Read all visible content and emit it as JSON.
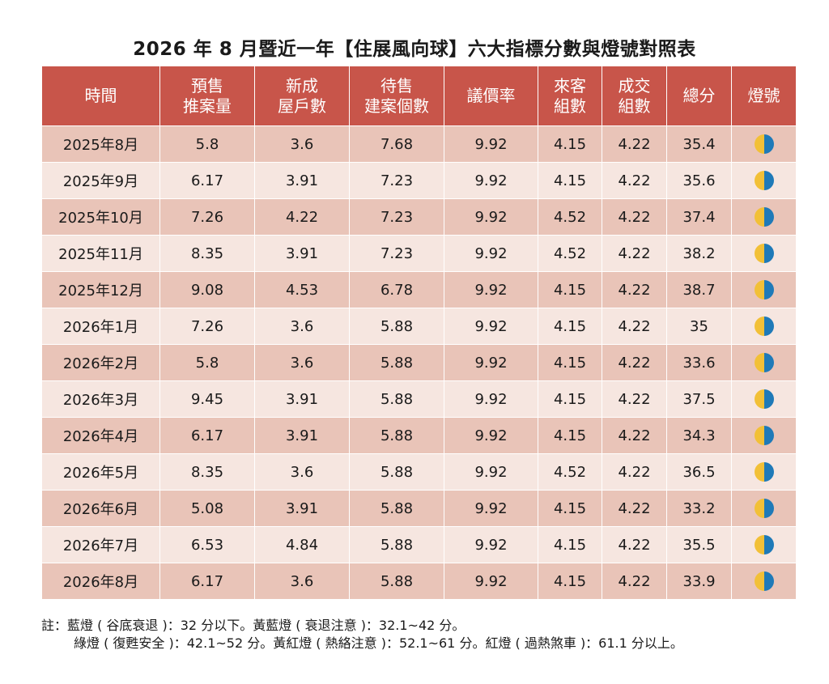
{
  "title": "2026 年 8 月暨近一年【住展風向球】六大指標分數與燈號對照表",
  "colors": {
    "header_bg": "#c8554a",
    "row_dark": "#e9c4b8",
    "row_light": "#f6e6e0",
    "lamp_yellow": "#f2c037",
    "lamp_blue": "#1f7ab8"
  },
  "headers": [
    [
      "時間"
    ],
    [
      "預售",
      "推案量"
    ],
    [
      "新成",
      "屋戶數"
    ],
    [
      "待售",
      "建案個數"
    ],
    [
      "議價率"
    ],
    [
      "來客",
      "組數"
    ],
    [
      "成交",
      "組數"
    ],
    [
      "總分"
    ],
    [
      "燈號"
    ]
  ],
  "rows": [
    {
      "period": "2025年8月",
      "presale": "5.8",
      "new_homes": "3.6",
      "unsold": "7.68",
      "bargain": "9.92",
      "visitors": "4.15",
      "deals": "4.22",
      "total": "35.4",
      "lamp_icon": "yellow-blue-lamp"
    },
    {
      "period": "2025年9月",
      "presale": "6.17",
      "new_homes": "3.91",
      "unsold": "7.23",
      "bargain": "9.92",
      "visitors": "4.15",
      "deals": "4.22",
      "total": "35.6",
      "lamp_icon": "yellow-blue-lamp"
    },
    {
      "period": "2025年10月",
      "presale": "7.26",
      "new_homes": "4.22",
      "unsold": "7.23",
      "bargain": "9.92",
      "visitors": "4.52",
      "deals": "4.22",
      "total": "37.4",
      "lamp_icon": "yellow-blue-lamp"
    },
    {
      "period": "2025年11月",
      "presale": "8.35",
      "new_homes": "3.91",
      "unsold": "7.23",
      "bargain": "9.92",
      "visitors": "4.52",
      "deals": "4.22",
      "total": "38.2",
      "lamp_icon": "yellow-blue-lamp"
    },
    {
      "period": "2025年12月",
      "presale": "9.08",
      "new_homes": "4.53",
      "unsold": "6.78",
      "bargain": "9.92",
      "visitors": "4.15",
      "deals": "4.22",
      "total": "38.7",
      "lamp_icon": "yellow-blue-lamp"
    },
    {
      "period": "2026年1月",
      "presale": "7.26",
      "new_homes": "3.6",
      "unsold": "5.88",
      "bargain": "9.92",
      "visitors": "4.15",
      "deals": "4.22",
      "total": "35",
      "lamp_icon": "yellow-blue-lamp"
    },
    {
      "period": "2026年2月",
      "presale": "5.8",
      "new_homes": "3.6",
      "unsold": "5.88",
      "bargain": "9.92",
      "visitors": "4.15",
      "deals": "4.22",
      "total": "33.6",
      "lamp_icon": "yellow-blue-lamp"
    },
    {
      "period": "2026年3月",
      "presale": "9.45",
      "new_homes": "3.91",
      "unsold": "5.88",
      "bargain": "9.92",
      "visitors": "4.15",
      "deals": "4.22",
      "total": "37.5",
      "lamp_icon": "yellow-blue-lamp"
    },
    {
      "period": "2026年4月",
      "presale": "6.17",
      "new_homes": "3.91",
      "unsold": "5.88",
      "bargain": "9.92",
      "visitors": "4.15",
      "deals": "4.22",
      "total": "34.3",
      "lamp_icon": "yellow-blue-lamp"
    },
    {
      "period": "2026年5月",
      "presale": "8.35",
      "new_homes": "3.6",
      "unsold": "5.88",
      "bargain": "9.92",
      "visitors": "4.52",
      "deals": "4.22",
      "total": "36.5",
      "lamp_icon": "yellow-blue-lamp"
    },
    {
      "period": "2026年6月",
      "presale": "5.08",
      "new_homes": "3.91",
      "unsold": "5.88",
      "bargain": "9.92",
      "visitors": "4.15",
      "deals": "4.22",
      "total": "33.2",
      "lamp_icon": "yellow-blue-lamp"
    },
    {
      "period": "2026年7月",
      "presale": "6.53",
      "new_homes": "4.84",
      "unsold": "5.88",
      "bargain": "9.92",
      "visitors": "4.15",
      "deals": "4.22",
      "total": "35.5",
      "lamp_icon": "yellow-blue-lamp"
    },
    {
      "period": "2026年8月",
      "presale": "6.17",
      "new_homes": "3.6",
      "unsold": "5.88",
      "bargain": "9.92",
      "visitors": "4.15",
      "deals": "4.22",
      "total": "33.9",
      "lamp_icon": "yellow-blue-lamp"
    }
  ],
  "notes": {
    "line1": "註：藍燈 ( 谷底衰退 )：32 分以下。黃藍燈 ( 衰退注意 )：32.1~42 分。",
    "line2": "綠燈 ( 復甦安全 )：42.1~52 分。黃紅燈 ( 熱絡注意 )：52.1~61 分。紅燈 ( 過熱煞車 )：61.1 分以上。"
  }
}
